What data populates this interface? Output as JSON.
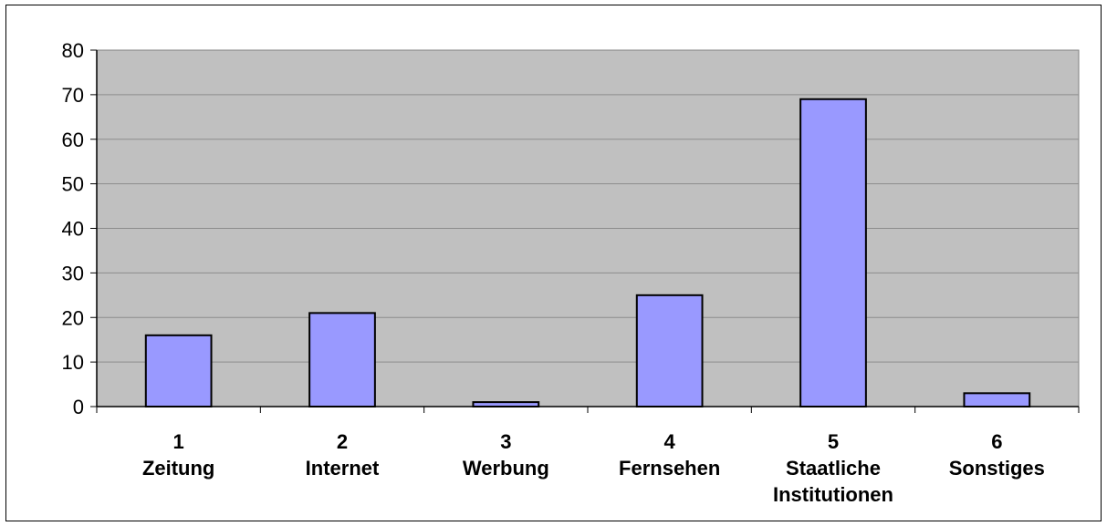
{
  "chart_data": {
    "type": "bar",
    "title": "",
    "xlabel": "",
    "ylabel": "",
    "categories": [
      [
        "1",
        "Zeitung"
      ],
      [
        "2",
        "Internet"
      ],
      [
        "3",
        "Werbung"
      ],
      [
        "4",
        "Fernsehen"
      ],
      [
        "5",
        "Staatliche",
        "Institutionen"
      ],
      [
        "6",
        "Sonstiges"
      ]
    ],
    "values": [
      16,
      21,
      1,
      25,
      69,
      3
    ],
    "ylim": [
      0,
      80
    ],
    "yticks": [
      "0",
      "10",
      "20",
      "30",
      "40",
      "50",
      "60",
      "70",
      "80"
    ],
    "grid": true,
    "legend": "none",
    "colors": {
      "plot_background": "#c0c0c0",
      "bar_fill": "#9999ff",
      "bar_stroke": "#000000",
      "gridline": "#8c8c8c"
    }
  }
}
